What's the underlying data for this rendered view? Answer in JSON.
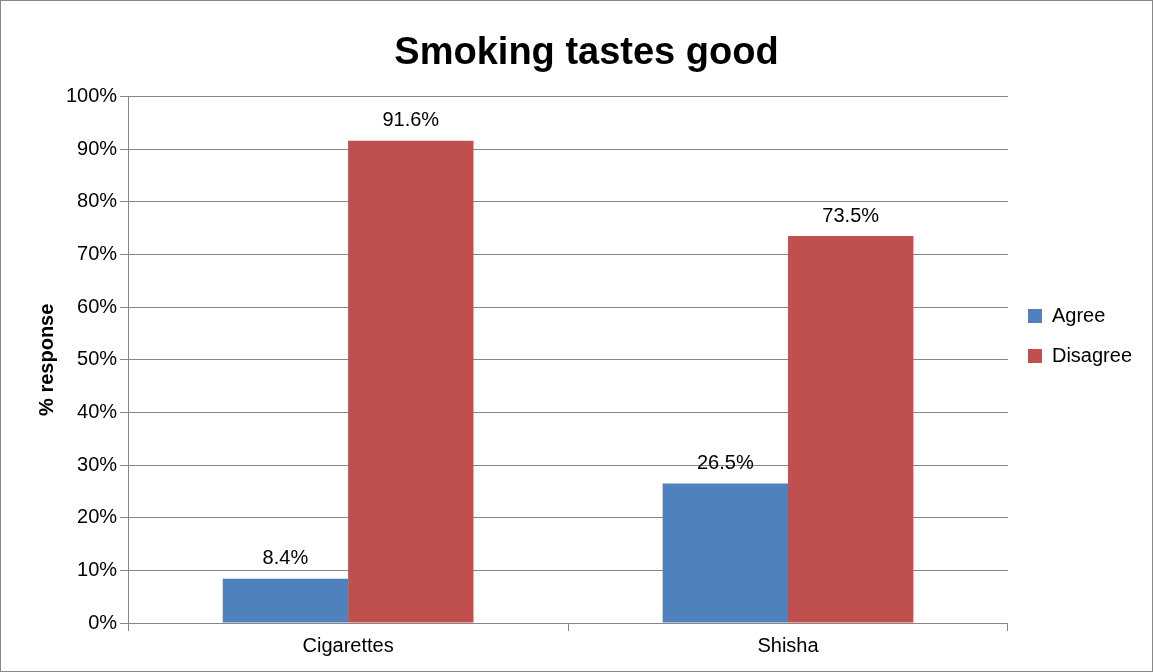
{
  "chart_data": {
    "type": "bar",
    "title": "Smoking tastes good",
    "ylabel": "% response",
    "categories": [
      "Cigarettes",
      "Shisha"
    ],
    "series": [
      {
        "name": "Agree",
        "color": "#4f81bd",
        "values": [
          8.4,
          26.5
        ],
        "value_labels": [
          "8.4%",
          "26.5%"
        ]
      },
      {
        "name": "Disagree",
        "color": "#c0504d",
        "values": [
          91.6,
          73.5
        ],
        "value_labels": [
          "91.6%",
          "73.5%"
        ]
      }
    ],
    "ylim": [
      0,
      100
    ],
    "yticks": [
      {
        "value": 0,
        "label": "0%"
      },
      {
        "value": 10,
        "label": "10%"
      },
      {
        "value": 20,
        "label": "20%"
      },
      {
        "value": 30,
        "label": "30%"
      },
      {
        "value": 40,
        "label": "40%"
      },
      {
        "value": 50,
        "label": "50%"
      },
      {
        "value": 60,
        "label": "60%"
      },
      {
        "value": 70,
        "label": "70%"
      },
      {
        "value": 80,
        "label": "80%"
      },
      {
        "value": 90,
        "label": "90%"
      },
      {
        "value": 100,
        "label": "100%"
      }
    ],
    "grid": "y",
    "legend": "right"
  }
}
